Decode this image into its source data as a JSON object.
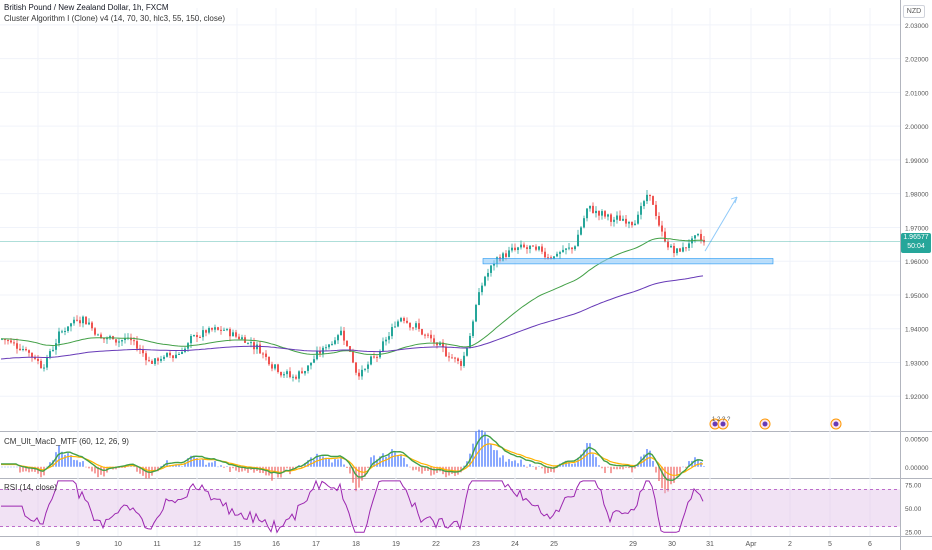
{
  "header": {
    "title": "British Pound / New Zealand Dollar, 1h, FXCM",
    "indicator": "Cluster Algorithm I (Clone) v4 (14, 70, 30, hlc3, 55, 150, close)",
    "currency": "NZD"
  },
  "price_tag": {
    "price": "1.96577",
    "countdown": "50:04"
  },
  "macd": {
    "title": "CM_Ult_MacD_MTF (60, 12, 26, 9)"
  },
  "rsi": {
    "title": "RSI (14, close)"
  },
  "event_badges": [
    "1",
    "2",
    "?",
    "?"
  ],
  "colors": {
    "up": "#26a69a",
    "down": "#ef5350",
    "green_ma": "#43a047",
    "purple_ma": "#673ab7",
    "zone": "#90caf9",
    "rsi_band": "#e1bee7",
    "rsi_line": "#9c27b0",
    "grid": "#f0f3fa"
  },
  "chart_data": [
    {
      "type": "candlestick",
      "title": "British Pound / New Zealand Dollar, 1h, FXCM",
      "ylim": [
        1.91,
        2.035
      ],
      "y_ticks": [
        "1.92000",
        "1.93000",
        "1.94000",
        "1.95000",
        "1.96000",
        "1.97000",
        "1.98000",
        "1.99000",
        "2.00000",
        "2.01000",
        "2.02000",
        "2.03000"
      ],
      "x_ticks": [
        "8",
        "9",
        "10",
        "11",
        "12",
        "15",
        "16",
        "17",
        "18",
        "19",
        "22",
        "23",
        "24",
        "25",
        "29",
        "30",
        "31",
        "Apr",
        "2",
        "5",
        "6"
      ],
      "anchors": [
        [
          0,
          1.937
        ],
        [
          20,
          1.935
        ],
        [
          40,
          1.929
        ],
        [
          60,
          1.94
        ],
        [
          80,
          1.944
        ],
        [
          100,
          1.937
        ],
        [
          125,
          1.937
        ],
        [
          150,
          1.93
        ],
        [
          175,
          1.933
        ],
        [
          200,
          1.939
        ],
        [
          225,
          1.939
        ],
        [
          250,
          1.936
        ],
        [
          270,
          1.93
        ],
        [
          290,
          1.925
        ],
        [
          315,
          1.932
        ],
        [
          340,
          1.94
        ],
        [
          355,
          1.926
        ],
        [
          375,
          1.932
        ],
        [
          400,
          1.945
        ],
        [
          415,
          1.94
        ],
        [
          435,
          1.934
        ],
        [
          460,
          1.93
        ],
        [
          480,
          1.955
        ],
        [
          500,
          1.962
        ],
        [
          520,
          1.964
        ],
        [
          545,
          1.962
        ],
        [
          570,
          1.963
        ],
        [
          585,
          1.976
        ],
        [
          610,
          1.972
        ],
        [
          630,
          1.972
        ],
        [
          648,
          1.98
        ],
        [
          660,
          1.966
        ],
        [
          675,
          1.962
        ],
        [
          690,
          1.967
        ],
        [
          705,
          1.965
        ]
      ],
      "support_zone": [
        1.9595,
        1.9605
      ],
      "projection": {
        "from": [
          705,
          1.963
        ],
        "to": [
          737,
          1.979
        ]
      },
      "last_price": 1.96577
    },
    {
      "type": "histogram",
      "title": "CM_Ult_MacD_MTF (60, 12, 26, 9)",
      "ylim": [
        -0.002,
        0.006
      ],
      "y_ticks": [
        "0.00500",
        "0.00000"
      ]
    },
    {
      "type": "line",
      "title": "RSI (14, close)",
      "ylim": [
        20,
        80
      ],
      "y_ticks": [
        "75.00",
        "50.00",
        "25.00"
      ],
      "band": [
        30,
        70
      ]
    }
  ]
}
